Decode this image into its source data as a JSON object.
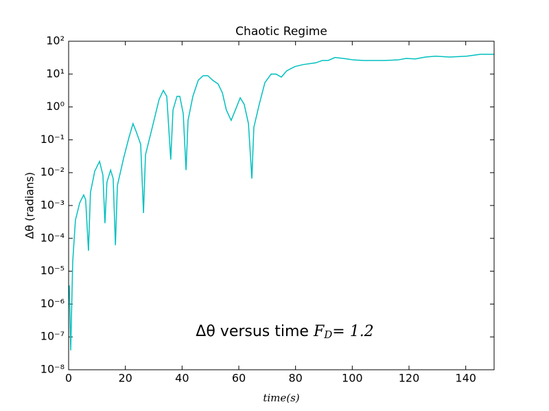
{
  "chart_data": {
    "type": "line",
    "title": "Chaotic Regime",
    "x_label": "time(s)",
    "y_label": "Δθ (radians)",
    "annotation": {
      "main": "Δθ versus time",
      "symbol": "F",
      "subscript": "D",
      "tail": "= 1.2"
    },
    "log_y": true,
    "x": [
      0.24,
      0.73,
      1.45,
      2.4,
      3.9,
      5.3,
      6.0,
      7.0,
      7.7,
      9.2,
      10.9,
      12.1,
      12.8,
      13.5,
      14.8,
      15.7,
      16.5,
      17.2,
      19.4,
      21.3,
      22.7,
      23.7,
      25.4,
      26.4,
      27.1,
      29.5,
      31.9,
      33.4,
      34.6,
      36.0,
      36.8,
      38.2,
      39.2,
      40.4,
      41.4,
      42.1,
      43.8,
      45.7,
      47.4,
      49.1,
      50.8,
      52.7,
      54.2,
      55.6,
      57.3,
      58.8,
      60.5,
      61.9,
      63.4,
      64.6,
      65.3,
      67.3,
      69.2,
      71.4,
      73.1,
      75.0,
      76.9,
      79.8,
      82.7,
      87.1,
      89.5,
      91.5,
      93.9,
      96.8,
      100.4,
      104,
      111.3,
      116.1,
      119,
      122.2,
      125.8,
      129.4,
      134.3,
      140.3,
      145.2,
      150
    ],
    "series": [
      {
        "name": "Δθ",
        "color": "#00bfbf",
        "values": [
          3.7e-06,
          3.9e-08,
          2e-05,
          0.00036,
          0.0012,
          0.0021,
          0.0015,
          4.2e-05,
          0.0025,
          0.011,
          0.022,
          0.0083,
          0.00029,
          0.0051,
          0.012,
          0.0066,
          6.2e-05,
          0.0041,
          0.028,
          0.12,
          0.31,
          0.19,
          0.073,
          0.00059,
          0.035,
          0.24,
          1.7,
          3.2,
          2.1,
          0.025,
          0.81,
          2.1,
          2.1,
          0.63,
          0.012,
          0.39,
          2.1,
          6.5,
          8.9,
          8.9,
          6.5,
          5,
          2.7,
          0.81,
          0.39,
          0.81,
          1.9,
          1.2,
          0.31,
          0.0066,
          0.24,
          1.3,
          5.5,
          10,
          10,
          8.1,
          12.6,
          17,
          19.5,
          22,
          26,
          26,
          32,
          30,
          27,
          26,
          26,
          27,
          30,
          29,
          33,
          35,
          33,
          35,
          40,
          40
        ]
      }
    ],
    "xlim": [
      0,
      150
    ],
    "xticks": [
      0,
      20,
      40,
      60,
      80,
      100,
      120,
      140
    ],
    "ylim": [
      1e-08,
      100
    ],
    "yticks": [
      {
        "value": 1e-08,
        "label": "10⁻⁸"
      },
      {
        "value": 1e-07,
        "label": "10⁻⁷"
      },
      {
        "value": 1e-06,
        "label": "10⁻⁶"
      },
      {
        "value": 1e-05,
        "label": "10⁻⁵"
      },
      {
        "value": 0.0001,
        "label": "10⁻⁴"
      },
      {
        "value": 0.001,
        "label": "10⁻³"
      },
      {
        "value": 0.01,
        "label": "10⁻²"
      },
      {
        "value": 0.1,
        "label": "10⁻¹"
      },
      {
        "value": 1,
        "label": "10⁰"
      },
      {
        "value": 10,
        "label": "10¹"
      },
      {
        "value": 100,
        "label": "10²"
      }
    ]
  }
}
